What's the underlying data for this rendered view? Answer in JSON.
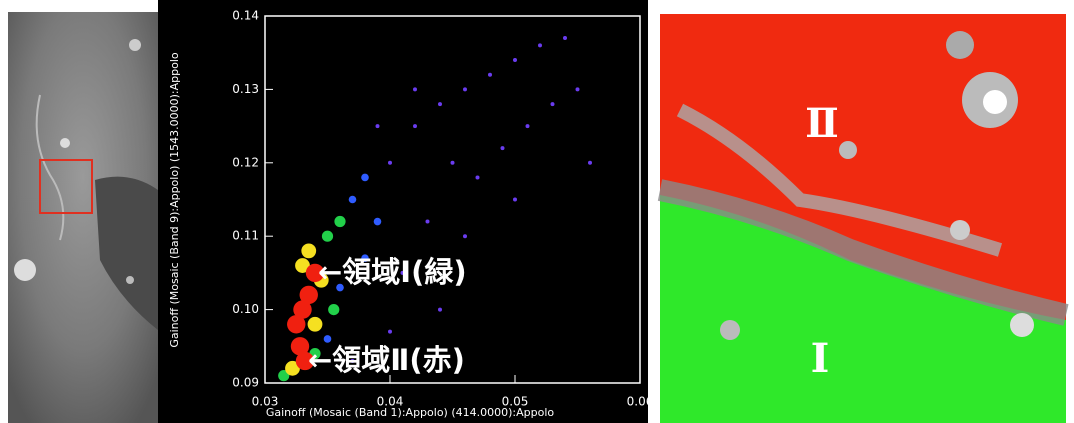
{
  "chart_data": {
    "type": "scatter",
    "xlabel": "Gainoff (Mosaic (Band 1):Appolo) (414.0000):Appolo",
    "ylabel": "Gainoff (Mosaic (Band 9):Appolo) (1543.0000):Appolo",
    "xlim": [
      0.03,
      0.06
    ],
    "ylim": [
      0.09,
      0.14
    ],
    "xticks": [
      0.03,
      0.04,
      0.05,
      0.06
    ],
    "yticks": [
      0.09,
      {
        "value": 0.1,
        "label": "0.10"
      },
      0.11,
      0.12,
      0.13,
      0.14
    ],
    "annotations": [
      "←領域Ⅰ(緑)",
      "←領域Ⅱ(赤)"
    ],
    "series": [
      {
        "color": "#6a3cf0",
        "x": [
          0.04,
          0.042,
          0.044,
          0.046,
          0.048,
          0.05,
          0.052,
          0.054,
          0.045,
          0.047,
          0.049,
          0.051,
          0.053,
          0.043,
          0.046,
          0.05,
          0.041,
          0.044,
          0.04,
          0.037,
          0.055,
          0.056,
          0.042,
          0.039
        ],
        "values": [
          0.12,
          0.125,
          0.128,
          0.13,
          0.132,
          0.134,
          0.136,
          0.137,
          0.12,
          0.118,
          0.122,
          0.125,
          0.128,
          0.112,
          0.11,
          0.115,
          0.105,
          0.1,
          0.097,
          0.093,
          0.13,
          0.12,
          0.13,
          0.125
        ]
      },
      {
        "color": "#2f5cff",
        "x": [
          0.037,
          0.038,
          0.036,
          0.039,
          0.035,
          0.038
        ],
        "values": [
          0.115,
          0.118,
          0.103,
          0.112,
          0.096,
          0.107
        ]
      },
      {
        "color": "#22d04a",
        "x": [
          0.035,
          0.036,
          0.0355,
          0.0315,
          0.034
        ],
        "values": [
          0.11,
          0.112,
          0.1,
          0.091,
          0.094
        ]
      },
      {
        "color": "#f5e021",
        "x": [
          0.0322,
          0.034,
          0.0345,
          0.033,
          0.0335
        ],
        "values": [
          0.092,
          0.098,
          0.104,
          0.106,
          0.108
        ]
      },
      {
        "color": "#f02010",
        "x": [
          0.0325,
          0.033,
          0.0335,
          0.0328,
          0.0332,
          0.034
        ],
        "values": [
          0.098,
          0.1,
          0.102,
          0.095,
          0.093,
          0.105
        ]
      }
    ]
  },
  "map": {
    "labels": [
      "Ⅱ",
      "Ⅰ"
    ]
  }
}
